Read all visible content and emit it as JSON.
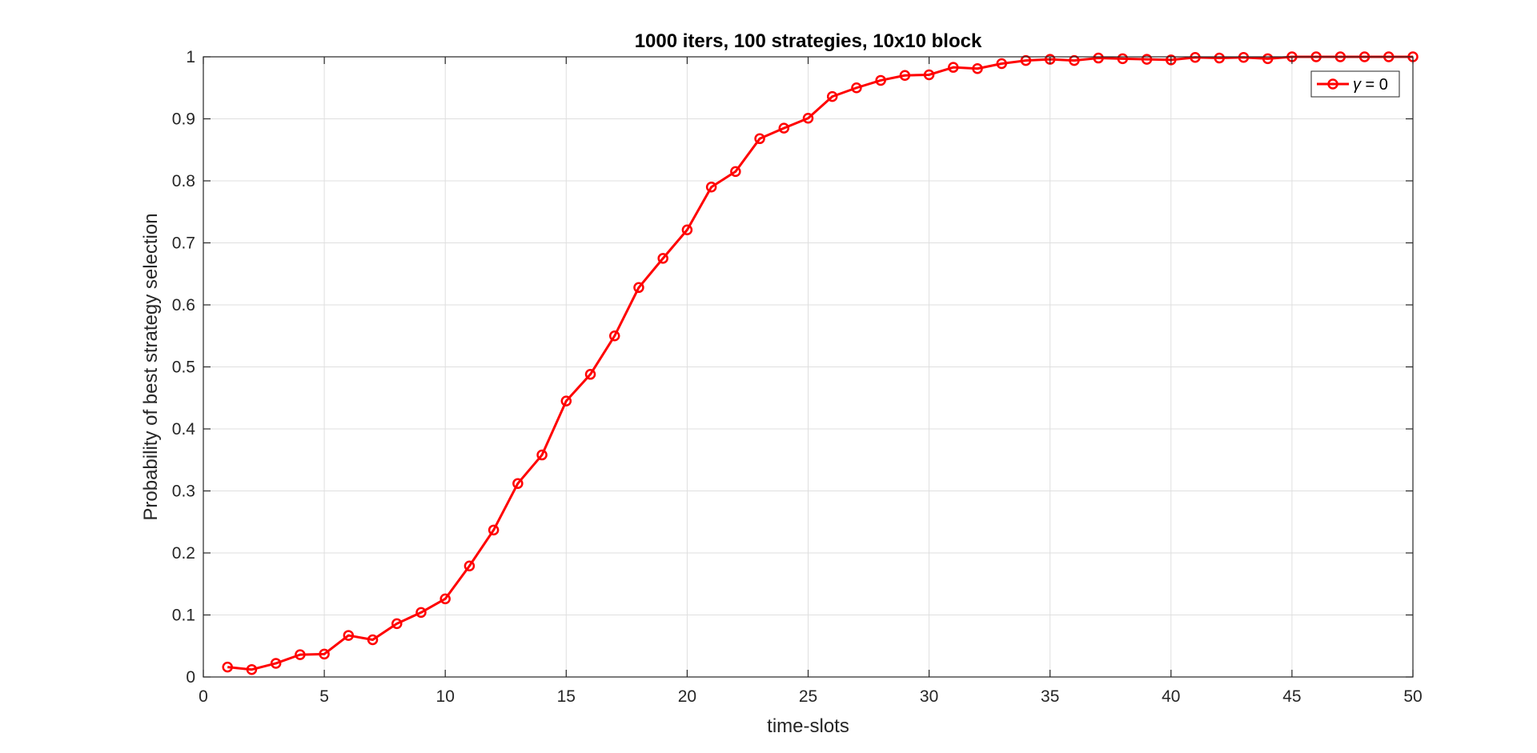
{
  "chart_data": {
    "type": "line",
    "title": "1000 iters, 100 strategies, 10x10 block",
    "xlabel": "time-slots",
    "ylabel": "Probability of best strategy selection",
    "xlim": [
      0,
      50
    ],
    "ylim": [
      0,
      1
    ],
    "xticks": [
      0,
      5,
      10,
      15,
      20,
      25,
      30,
      35,
      40,
      45,
      50
    ],
    "yticks": [
      0,
      0.1,
      0.2,
      0.3,
      0.4,
      0.5,
      0.6,
      0.7,
      0.8,
      0.9,
      1
    ],
    "grid": true,
    "legend_position": "top-right",
    "series": [
      {
        "name": "γ = 0",
        "legend_symbol": "γ",
        "legend_rest": " = 0",
        "color": "#ff0000",
        "marker": "circle",
        "x": [
          1,
          2,
          3,
          4,
          5,
          6,
          7,
          8,
          9,
          10,
          11,
          12,
          13,
          14,
          15,
          16,
          17,
          18,
          19,
          20,
          21,
          22,
          23,
          24,
          25,
          26,
          27,
          28,
          29,
          30,
          31,
          32,
          33,
          34,
          35,
          36,
          37,
          38,
          39,
          40,
          41,
          42,
          43,
          44,
          45,
          46,
          47,
          48,
          49,
          50
        ],
        "y": [
          0.016,
          0.012,
          0.022,
          0.036,
          0.037,
          0.067,
          0.06,
          0.086,
          0.104,
          0.126,
          0.179,
          0.237,
          0.312,
          0.358,
          0.445,
          0.488,
          0.55,
          0.628,
          0.675,
          0.721,
          0.79,
          0.815,
          0.868,
          0.885,
          0.901,
          0.936,
          0.95,
          0.962,
          0.97,
          0.971,
          0.983,
          0.981,
          0.989,
          0.994,
          0.996,
          0.994,
          0.998,
          0.997,
          0.996,
          0.995,
          0.999,
          0.998,
          0.999,
          0.997,
          1.0,
          1.0,
          1.0,
          1.0,
          1.0,
          1.0
        ]
      }
    ]
  }
}
